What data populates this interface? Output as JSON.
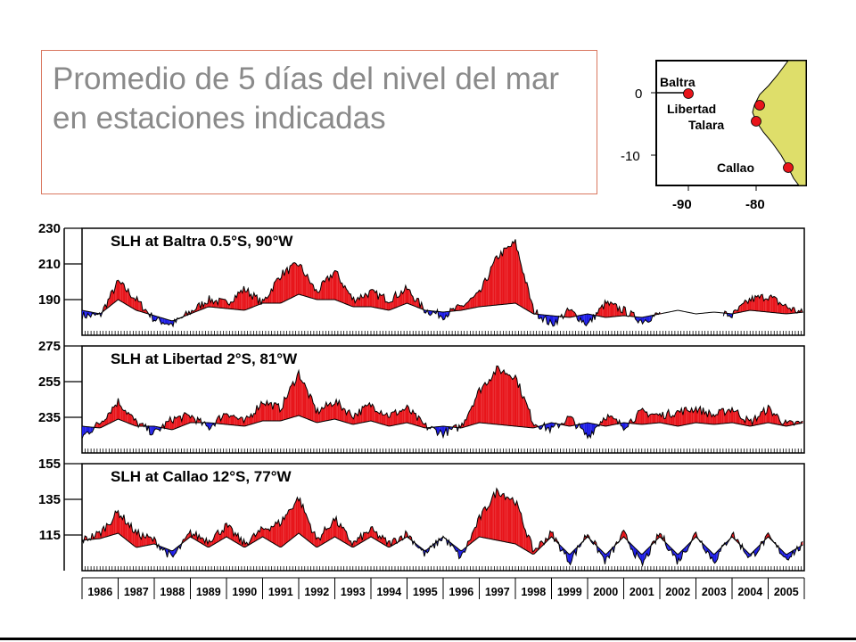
{
  "slide": {
    "title": "Promedio de 5 días del nivel del mar en estaciones indicadas"
  },
  "map": {
    "stations": [
      "Baltra",
      "Libertad",
      "Talara",
      "Callao"
    ],
    "lat_ticks": [
      "0",
      "-10"
    ],
    "lon_ticks": [
      "-90",
      "-80"
    ],
    "land_color": "#dede6a",
    "station_color": "#e8141a"
  },
  "colors": {
    "positive_anomaly": "#e8141a",
    "negative_anomaly": "#1a1ae6",
    "line": "#000000"
  },
  "chart_data": [
    {
      "type": "line",
      "title": "SLH at Baltra 0.5°S, 90°W",
      "y_ticks": [
        "230",
        "210",
        "190"
      ],
      "ylim": [
        170,
        230
      ],
      "xlim": [
        1986,
        2006
      ],
      "x_tick_labels": [
        "1986",
        "1987",
        "1988",
        "1989",
        "1990",
        "1991",
        "1992",
        "1993",
        "1994",
        "1995",
        "1996",
        "1997",
        "1998",
        "1999",
        "2000",
        "2001",
        "2002",
        "2003",
        "2004",
        "2005"
      ],
      "gap": [
        2002.0,
        2003.75
      ],
      "series": [
        {
          "values": [
            [
              1986.0,
              184
            ],
            [
              1986.5,
              182
            ],
            [
              1987.0,
              190
            ],
            [
              1987.5,
              184
            ],
            [
              1988.0,
              181
            ],
            [
              1988.5,
              178
            ],
            [
              1989.0,
              182
            ],
            [
              1989.5,
              186
            ],
            [
              1990.0,
              185
            ],
            [
              1990.5,
              184
            ],
            [
              1991.0,
              188
            ],
            [
              1991.5,
              188
            ],
            [
              1992.0,
              193
            ],
            [
              1992.5,
              190
            ],
            [
              1993.0,
              190
            ],
            [
              1993.5,
              186
            ],
            [
              1994.0,
              186
            ],
            [
              1994.5,
              184
            ],
            [
              1995.0,
              188
            ],
            [
              1995.5,
              184
            ],
            [
              1996.0,
              183
            ],
            [
              1996.5,
              184
            ],
            [
              1997.0,
              186
            ],
            [
              1997.5,
              187
            ],
            [
              1998.0,
              188
            ],
            [
              1998.5,
              182
            ],
            [
              1999.0,
              181
            ],
            [
              1999.5,
              180
            ],
            [
              2000.0,
              182
            ],
            [
              2000.5,
              180
            ],
            [
              2001.0,
              181
            ],
            [
              2001.5,
              180
            ],
            [
              2002.0,
              182
            ],
            [
              2002.5,
              184
            ],
            [
              2003.0,
              182
            ],
            [
              2003.5,
              183
            ],
            [
              2004.0,
              182
            ],
            [
              2004.5,
              184
            ],
            [
              2005.0,
              183
            ],
            [
              2005.5,
              182
            ],
            [
              2006.0,
              183
            ]
          ]
        },
        {
          "values": [
            [
              1986.0,
              181
            ],
            [
              1986.5,
              181
            ],
            [
              1987.0,
              200
            ],
            [
              1987.5,
              190
            ],
            [
              1988.0,
              179
            ],
            [
              1988.5,
              176
            ],
            [
              1989.0,
              183
            ],
            [
              1989.5,
              190
            ],
            [
              1990.0,
              188
            ],
            [
              1990.5,
              196
            ],
            [
              1991.0,
              188
            ],
            [
              1991.5,
              204
            ],
            [
              1992.0,
              210
            ],
            [
              1992.5,
              194
            ],
            [
              1993.0,
              206
            ],
            [
              1993.5,
              190
            ],
            [
              1994.0,
              194
            ],
            [
              1994.5,
              190
            ],
            [
              1995.0,
              196
            ],
            [
              1995.5,
              184
            ],
            [
              1996.0,
              181
            ],
            [
              1996.5,
              186
            ],
            [
              1997.0,
              193
            ],
            [
              1997.5,
              214
            ],
            [
              1998.0,
              222
            ],
            [
              1998.5,
              184
            ],
            [
              1999.0,
              176
            ],
            [
              1999.5,
              184
            ],
            [
              2000.0,
              176
            ],
            [
              2000.5,
              188
            ],
            [
              2001.0,
              184
            ],
            [
              2001.5,
              178
            ],
            [
              2002.0,
              182
            ],
            [
              2002.5,
              183
            ],
            [
              2003.0,
              181
            ],
            [
              2003.5,
              183
            ],
            [
              2004.0,
              181
            ],
            [
              2004.5,
              190
            ],
            [
              2005.0,
              192
            ],
            [
              2005.5,
              186
            ],
            [
              2006.0,
              182
            ]
          ]
        }
      ]
    },
    {
      "type": "line",
      "title": "SLH at Libertad  2°S, 81°W",
      "y_ticks": [
        "275",
        "255",
        "235"
      ],
      "ylim": [
        215,
        275
      ],
      "xlim": [
        1986,
        2006
      ],
      "x_tick_labels": [
        "1986",
        "1987",
        "1988",
        "1989",
        "1990",
        "1991",
        "1992",
        "1993",
        "1994",
        "1995",
        "1996",
        "1997",
        "1998",
        "1999",
        "2000",
        "2001",
        "2002",
        "2003",
        "2004",
        "2005"
      ],
      "series": [
        {
          "values": [
            [
              1986.0,
              230
            ],
            [
              1986.5,
              229
            ],
            [
              1987.0,
              234
            ],
            [
              1987.5,
              230
            ],
            [
              1988.0,
              230
            ],
            [
              1988.5,
              228
            ],
            [
              1989.0,
              232
            ],
            [
              1989.5,
              232
            ],
            [
              1990.0,
              231
            ],
            [
              1990.5,
              230
            ],
            [
              1991.0,
              233
            ],
            [
              1991.5,
              233
            ],
            [
              1992.0,
              236
            ],
            [
              1992.5,
              232
            ],
            [
              1993.0,
              234
            ],
            [
              1993.5,
              231
            ],
            [
              1994.0,
              233
            ],
            [
              1994.5,
              230
            ],
            [
              1995.0,
              232
            ],
            [
              1995.5,
              229
            ],
            [
              1996.0,
              230
            ],
            [
              1996.5,
              229
            ],
            [
              1997.0,
              232
            ],
            [
              1997.5,
              231
            ],
            [
              1998.0,
              230
            ],
            [
              1998.5,
              229
            ],
            [
              1999.0,
              232
            ],
            [
              1999.5,
              230
            ],
            [
              2000.0,
              232
            ],
            [
              2000.5,
              230
            ],
            [
              2001.0,
              232
            ],
            [
              2001.5,
              231
            ],
            [
              2002.0,
              232
            ],
            [
              2002.5,
              230
            ],
            [
              2003.0,
              232
            ],
            [
              2003.5,
              231
            ],
            [
              2004.0,
              232
            ],
            [
              2004.5,
              230
            ],
            [
              2005.0,
              232
            ],
            [
              2005.5,
              230
            ],
            [
              2006.0,
              232
            ]
          ]
        },
        {
          "values": [
            [
              1986.0,
              224
            ],
            [
              1986.5,
              232
            ],
            [
              1987.0,
              244
            ],
            [
              1987.5,
              232
            ],
            [
              1988.0,
              226
            ],
            [
              1988.5,
              234
            ],
            [
              1989.0,
              236
            ],
            [
              1989.5,
              229
            ],
            [
              1990.0,
              238
            ],
            [
              1990.5,
              232
            ],
            [
              1991.0,
              244
            ],
            [
              1991.5,
              240
            ],
            [
              1992.0,
              260
            ],
            [
              1992.5,
              238
            ],
            [
              1993.0,
              244
            ],
            [
              1993.5,
              236
            ],
            [
              1994.0,
              242
            ],
            [
              1994.5,
              236
            ],
            [
              1995.0,
              240
            ],
            [
              1995.5,
              230
            ],
            [
              1996.0,
              226
            ],
            [
              1996.5,
              230
            ],
            [
              1997.0,
              250
            ],
            [
              1997.5,
              262
            ],
            [
              1998.0,
              258
            ],
            [
              1998.5,
              232
            ],
            [
              1999.0,
              228
            ],
            [
              1999.5,
              235
            ],
            [
              2000.0,
              224
            ],
            [
              2000.5,
              236
            ],
            [
              2001.0,
              230
            ],
            [
              2001.5,
              238
            ],
            [
              2002.0,
              236
            ],
            [
              2002.5,
              238
            ],
            [
              2003.0,
              240
            ],
            [
              2003.5,
              236
            ],
            [
              2004.0,
              240
            ],
            [
              2004.5,
              232
            ],
            [
              2005.0,
              240
            ],
            [
              2005.5,
              231
            ],
            [
              2006.0,
              232
            ]
          ]
        }
      ]
    },
    {
      "type": "line",
      "title": "SLH at Callao 12°S, 77°W",
      "y_ticks": [
        "155",
        "135",
        "115"
      ],
      "ylim": [
        95,
        155
      ],
      "xlim": [
        1986,
        2006
      ],
      "x_tick_labels": [
        "1986",
        "1987",
        "1988",
        "1989",
        "1990",
        "1991",
        "1992",
        "1993",
        "1994",
        "1995",
        "1996",
        "1997",
        "1998",
        "1999",
        "2000",
        "2001",
        "2002",
        "2003",
        "2004",
        "2005"
      ],
      "series": [
        {
          "values": [
            [
              1986.0,
              112
            ],
            [
              1986.5,
              113
            ],
            [
              1987.0,
              116
            ],
            [
              1987.5,
              108
            ],
            [
              1988.0,
              110
            ],
            [
              1988.5,
              106
            ],
            [
              1989.0,
              114
            ],
            [
              1989.5,
              108
            ],
            [
              1990.0,
              114
            ],
            [
              1990.5,
              108
            ],
            [
              1991.0,
              114
            ],
            [
              1991.5,
              108
            ],
            [
              1992.0,
              116
            ],
            [
              1992.5,
              108
            ],
            [
              1993.0,
              114
            ],
            [
              1993.5,
              108
            ],
            [
              1994.0,
              114
            ],
            [
              1994.5,
              108
            ],
            [
              1995.0,
              114
            ],
            [
              1995.5,
              106
            ],
            [
              1996.0,
              114
            ],
            [
              1996.5,
              106
            ],
            [
              1997.0,
              114
            ],
            [
              1997.5,
              112
            ],
            [
              1998.0,
              110
            ],
            [
              1998.5,
              104
            ],
            [
              1999.0,
              114
            ],
            [
              1999.5,
              104
            ],
            [
              2000.0,
              114
            ],
            [
              2000.5,
              104
            ],
            [
              2001.0,
              114
            ],
            [
              2001.5,
              104
            ],
            [
              2002.0,
              114
            ],
            [
              2002.5,
              104
            ],
            [
              2003.0,
              114
            ],
            [
              2003.5,
              104
            ],
            [
              2004.0,
              114
            ],
            [
              2004.5,
              104
            ],
            [
              2005.0,
              114
            ],
            [
              2005.5,
              104
            ],
            [
              2006.0,
              110
            ]
          ]
        },
        {
          "values": [
            [
              1986.0,
              112
            ],
            [
              1986.5,
              116
            ],
            [
              1987.0,
              128
            ],
            [
              1987.5,
              116
            ],
            [
              1988.0,
              112
            ],
            [
              1988.5,
              102
            ],
            [
              1989.0,
              116
            ],
            [
              1989.5,
              112
            ],
            [
              1990.0,
              120
            ],
            [
              1990.5,
              110
            ],
            [
              1991.0,
              118
            ],
            [
              1991.5,
              122
            ],
            [
              1992.0,
              136
            ],
            [
              1992.5,
              112
            ],
            [
              1993.0,
              124
            ],
            [
              1993.5,
              110
            ],
            [
              1994.0,
              118
            ],
            [
              1994.5,
              110
            ],
            [
              1995.0,
              116
            ],
            [
              1995.5,
              104
            ],
            [
              1996.0,
              114
            ],
            [
              1996.5,
              102
            ],
            [
              1997.0,
              124
            ],
            [
              1997.5,
              140
            ],
            [
              1998.0,
              134
            ],
            [
              1998.5,
              106
            ],
            [
              1999.0,
              116
            ],
            [
              1999.5,
              100
            ],
            [
              2000.0,
              116
            ],
            [
              2000.5,
              100
            ],
            [
              2001.0,
              116
            ],
            [
              2001.5,
              98
            ],
            [
              2002.0,
              116
            ],
            [
              2002.5,
              100
            ],
            [
              2003.0,
              116
            ],
            [
              2003.5,
              100
            ],
            [
              2004.0,
              116
            ],
            [
              2004.5,
              102
            ],
            [
              2005.0,
              114
            ],
            [
              2005.5,
              102
            ],
            [
              2006.0,
              110
            ]
          ]
        }
      ]
    }
  ]
}
